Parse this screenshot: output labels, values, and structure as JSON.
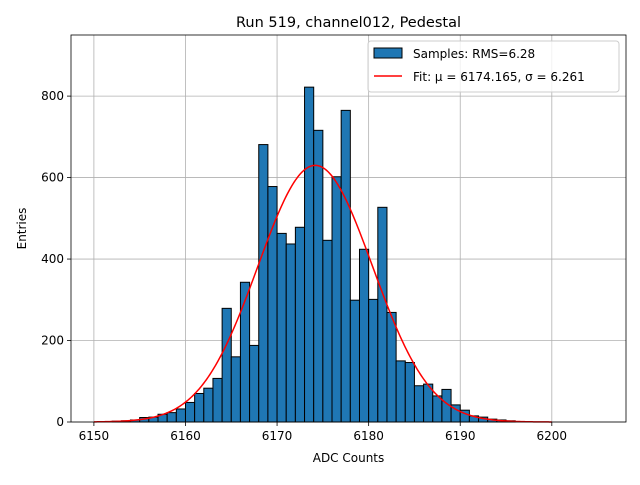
{
  "chart_data": {
    "type": "bar",
    "title": "Run 519, channel012, Pedestal",
    "xlabel": "ADC Counts",
    "ylabel": "Entries",
    "xlim": [
      6147.5,
      6208.1
    ],
    "ylim": [
      0,
      950
    ],
    "xticks": [
      6150,
      6160,
      6170,
      6180,
      6190,
      6200
    ],
    "yticks": [
      0,
      200,
      400,
      600,
      800
    ],
    "grid": true,
    "legend_position": "top-right",
    "bin_width": 1,
    "histogram": {
      "name": "Samples: RMS=6.28",
      "color": "#1f77b4",
      "bin_edges_start": [
        6152,
        6153,
        6154,
        6155,
        6156,
        6157,
        6158,
        6159,
        6160,
        6161,
        6162,
        6163,
        6164,
        6165,
        6166,
        6167,
        6168,
        6169,
        6170,
        6171,
        6172,
        6173,
        6174,
        6175,
        6176,
        6177,
        6178,
        6179,
        6180,
        6181,
        6182,
        6183,
        6184,
        6185,
        6186,
        6187,
        6188,
        6189,
        6190,
        6191,
        6192,
        6193,
        6194,
        6195
      ],
      "values": [
        2,
        3,
        5,
        11,
        12,
        19,
        23,
        32,
        48,
        70,
        83,
        107,
        279,
        160,
        343,
        188,
        681,
        578,
        463,
        437,
        478,
        822,
        716,
        446,
        602,
        765,
        299,
        424,
        301,
        527,
        269,
        150,
        146,
        89,
        93,
        64,
        80,
        42,
        29,
        15,
        12,
        7,
        5,
        3
      ]
    },
    "fit": {
      "name": "Fit: μ = 6174.165, σ = 6.261",
      "label_prefix": "Fit: ",
      "mu": 6174.165,
      "sigma": 6.261,
      "peak": 630,
      "range": [
        6150,
        6200
      ],
      "color": "#ff0000"
    }
  }
}
